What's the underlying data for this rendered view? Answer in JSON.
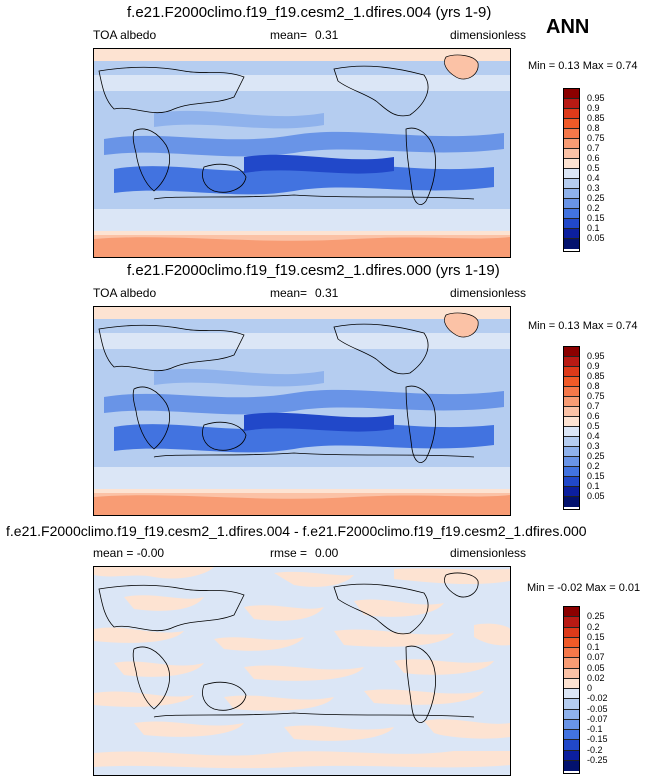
{
  "season": "ANN",
  "panels": [
    {
      "title": "f.e21.F2000climo.f19_f19.cesm2_1.dfires.004 (yrs 1-9)",
      "left": "TOA albedo",
      "middle_label": "mean=",
      "middle_value": "0.31",
      "right": "dimensionless",
      "minmax": "Min =  0.13 Max =  0.74",
      "levels": [
        "0.95",
        "0.9",
        "0.85",
        "0.8",
        "0.75",
        "0.7",
        "0.6",
        "0.5",
        "0.4",
        "0.3",
        "0.25",
        "0.2",
        "0.15",
        "0.1",
        "0.05"
      ],
      "colors": [
        "#8b0000",
        "#b81a14",
        "#dd3a1a",
        "#f05a28",
        "#f5784a",
        "#f89c74",
        "#fbc2a6",
        "#fde3d2",
        "#dbe6f6",
        "#b5cdf0",
        "#8fb2ec",
        "#6994e7",
        "#4273e0",
        "#2148c9",
        "#0c1f9e",
        "#03126e"
      ]
    },
    {
      "title": "f.e21.F2000climo.f19_f19.cesm2_1.dfires.000 (yrs 1-19)",
      "left": "TOA albedo",
      "middle_label": "mean=",
      "middle_value": "0.31",
      "right": "dimensionless",
      "minmax": "Min =  0.13 Max =  0.74",
      "levels": [
        "0.95",
        "0.9",
        "0.85",
        "0.8",
        "0.75",
        "0.7",
        "0.6",
        "0.5",
        "0.4",
        "0.3",
        "0.25",
        "0.2",
        "0.15",
        "0.1",
        "0.05"
      ],
      "colors": [
        "#8b0000",
        "#b81a14",
        "#dd3a1a",
        "#f05a28",
        "#f5784a",
        "#f89c74",
        "#fbc2a6",
        "#fde3d2",
        "#dbe6f6",
        "#b5cdf0",
        "#8fb2ec",
        "#6994e7",
        "#4273e0",
        "#2148c9",
        "#0c1f9e",
        "#03126e"
      ]
    },
    {
      "title": "f.e21.F2000climo.f19_f19.cesm2_1.dfires.004 - f.e21.F2000climo.f19_f19.cesm2_1.dfires.000",
      "left": "mean = -0.00",
      "middle_label": "rmse =",
      "middle_value": "0.00",
      "right": "dimensionless",
      "minmax": "Min = -0.02 Max =  0.01",
      "levels": [
        "0.25",
        "0.2",
        "0.15",
        "0.1",
        "0.07",
        "0.05",
        "0.02",
        "0",
        "-0.02",
        "-0.05",
        "-0.07",
        "-0.1",
        "-0.15",
        "-0.2",
        "-0.25"
      ],
      "colors": [
        "#8b0000",
        "#b81a14",
        "#dd3a1a",
        "#f05a28",
        "#f5784a",
        "#f89c74",
        "#fbc2a6",
        "#fde3d2",
        "#dbe6f6",
        "#b5cdf0",
        "#8fb2ec",
        "#6994e7",
        "#4273e0",
        "#2148c9",
        "#0c1f9e",
        "#03126e"
      ]
    }
  ]
}
